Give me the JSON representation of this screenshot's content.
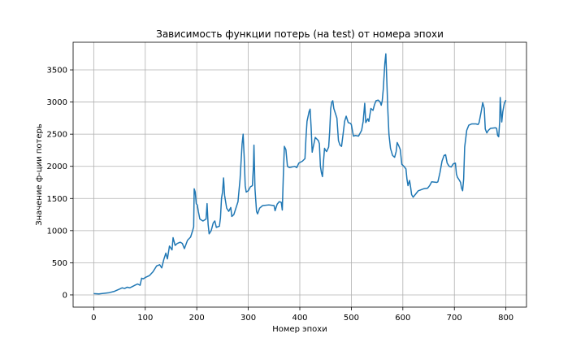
{
  "chart_data": {
    "type": "line",
    "title": "Зависимость функции потерь (на test) от номера эпохи",
    "xlabel": "Номер эпохи",
    "ylabel": "Значение ф-ции потерь",
    "xlim": [
      -40,
      840
    ],
    "ylim": [
      -190,
      3930
    ],
    "xticks": [
      0,
      100,
      200,
      300,
      400,
      500,
      600,
      700,
      800
    ],
    "yticks": [
      0,
      500,
      1000,
      1500,
      2000,
      2500,
      3000,
      3500
    ],
    "grid": true,
    "legend": "none",
    "series": [
      {
        "color": "#1f77b4",
        "points": [
          [
            0,
            20
          ],
          [
            10,
            15
          ],
          [
            20,
            25
          ],
          [
            30,
            35
          ],
          [
            40,
            55
          ],
          [
            50,
            90
          ],
          [
            55,
            110
          ],
          [
            60,
            100
          ],
          [
            65,
            120
          ],
          [
            70,
            110
          ],
          [
            75,
            130
          ],
          [
            80,
            150
          ],
          [
            85,
            170
          ],
          [
            90,
            150
          ],
          [
            93,
            260
          ],
          [
            96,
            250
          ],
          [
            100,
            270
          ],
          [
            108,
            300
          ],
          [
            115,
            360
          ],
          [
            122,
            450
          ],
          [
            128,
            470
          ],
          [
            132,
            420
          ],
          [
            136,
            550
          ],
          [
            140,
            650
          ],
          [
            143,
            560
          ],
          [
            147,
            760
          ],
          [
            152,
            700
          ],
          [
            154,
            890
          ],
          [
            158,
            770
          ],
          [
            162,
            800
          ],
          [
            168,
            820
          ],
          [
            172,
            800
          ],
          [
            176,
            720
          ],
          [
            182,
            850
          ],
          [
            188,
            900
          ],
          [
            192,
            1000
          ],
          [
            194,
            1060
          ],
          [
            195,
            1650
          ],
          [
            197,
            1600
          ],
          [
            199,
            1420
          ],
          [
            201,
            1400
          ],
          [
            203,
            1300
          ],
          [
            206,
            1180
          ],
          [
            212,
            1150
          ],
          [
            218,
            1180
          ],
          [
            220,
            1420
          ],
          [
            222,
            1100
          ],
          [
            224,
            950
          ],
          [
            228,
            1000
          ],
          [
            232,
            1120
          ],
          [
            235,
            1150
          ],
          [
            238,
            1050
          ],
          [
            244,
            1070
          ],
          [
            246,
            1200
          ],
          [
            248,
            1500
          ],
          [
            250,
            1600
          ],
          [
            252,
            1820
          ],
          [
            254,
            1550
          ],
          [
            258,
            1350
          ],
          [
            262,
            1300
          ],
          [
            266,
            1360
          ],
          [
            268,
            1220
          ],
          [
            272,
            1250
          ],
          [
            276,
            1350
          ],
          [
            280,
            1450
          ],
          [
            284,
            1800
          ],
          [
            288,
            2350
          ],
          [
            290,
            2500
          ],
          [
            292,
            2150
          ],
          [
            294,
            1700
          ],
          [
            296,
            1600
          ],
          [
            300,
            1620
          ],
          [
            304,
            1680
          ],
          [
            308,
            1700
          ],
          [
            310,
            2000
          ],
          [
            311,
            2330
          ],
          [
            313,
            1650
          ],
          [
            316,
            1300
          ],
          [
            318,
            1260
          ],
          [
            322,
            1350
          ],
          [
            328,
            1390
          ],
          [
            340,
            1400
          ],
          [
            350,
            1390
          ],
          [
            352,
            1310
          ],
          [
            356,
            1410
          ],
          [
            360,
            1450
          ],
          [
            364,
            1440
          ],
          [
            366,
            1320
          ],
          [
            368,
            1850
          ],
          [
            370,
            2310
          ],
          [
            373,
            2260
          ],
          [
            376,
            2000
          ],
          [
            380,
            1980
          ],
          [
            390,
            2000
          ],
          [
            394,
            1980
          ],
          [
            398,
            2050
          ],
          [
            405,
            2080
          ],
          [
            410,
            2120
          ],
          [
            412,
            2450
          ],
          [
            414,
            2700
          ],
          [
            418,
            2850
          ],
          [
            420,
            2890
          ],
          [
            422,
            2600
          ],
          [
            424,
            2220
          ],
          [
            426,
            2300
          ],
          [
            430,
            2450
          ],
          [
            436,
            2400
          ],
          [
            438,
            2350
          ],
          [
            440,
            2000
          ],
          [
            442,
            1900
          ],
          [
            444,
            1840
          ],
          [
            446,
            2080
          ],
          [
            448,
            2280
          ],
          [
            450,
            2250
          ],
          [
            452,
            2230
          ],
          [
            456,
            2300
          ],
          [
            458,
            2550
          ],
          [
            460,
            2900
          ],
          [
            462,
            3000
          ],
          [
            464,
            3020
          ],
          [
            466,
            2900
          ],
          [
            470,
            2800
          ],
          [
            472,
            2750
          ],
          [
            475,
            2400
          ],
          [
            478,
            2330
          ],
          [
            481,
            2310
          ],
          [
            484,
            2500
          ],
          [
            487,
            2700
          ],
          [
            490,
            2780
          ],
          [
            494,
            2680
          ],
          [
            498,
            2670
          ],
          [
            500,
            2650
          ],
          [
            504,
            2470
          ],
          [
            508,
            2480
          ],
          [
            514,
            2470
          ],
          [
            520,
            2560
          ],
          [
            523,
            2700
          ],
          [
            526,
            2980
          ],
          [
            528,
            2680
          ],
          [
            532,
            2740
          ],
          [
            534,
            2700
          ],
          [
            538,
            2900
          ],
          [
            542,
            2870
          ],
          [
            545,
            2960
          ],
          [
            548,
            3020
          ],
          [
            552,
            3030
          ],
          [
            556,
            3000
          ],
          [
            558,
            2950
          ],
          [
            560,
            3020
          ],
          [
            562,
            3200
          ],
          [
            565,
            3600
          ],
          [
            567,
            3750
          ],
          [
            569,
            3300
          ],
          [
            571,
            2850
          ],
          [
            573,
            2500
          ],
          [
            576,
            2280
          ],
          [
            580,
            2170
          ],
          [
            584,
            2140
          ],
          [
            587,
            2230
          ],
          [
            589,
            2370
          ],
          [
            592,
            2320
          ],
          [
            595,
            2260
          ],
          [
            598,
            2030
          ],
          [
            602,
            2000
          ],
          [
            606,
            1960
          ],
          [
            608,
            1800
          ],
          [
            610,
            1700
          ],
          [
            613,
            1780
          ],
          [
            615,
            1680
          ],
          [
            617,
            1560
          ],
          [
            620,
            1520
          ],
          [
            625,
            1570
          ],
          [
            630,
            1620
          ],
          [
            640,
            1650
          ],
          [
            648,
            1660
          ],
          [
            652,
            1700
          ],
          [
            656,
            1760
          ],
          [
            666,
            1750
          ],
          [
            668,
            1760
          ],
          [
            672,
            1900
          ],
          [
            676,
            2080
          ],
          [
            680,
            2170
          ],
          [
            683,
            2180
          ],
          [
            686,
            2050
          ],
          [
            690,
            2000
          ],
          [
            694,
            1990
          ],
          [
            698,
            2040
          ],
          [
            702,
            2050
          ],
          [
            704,
            1880
          ],
          [
            706,
            1830
          ],
          [
            710,
            1780
          ],
          [
            712,
            1750
          ],
          [
            714,
            1660
          ],
          [
            716,
            1620
          ],
          [
            718,
            1800
          ],
          [
            720,
            2300
          ],
          [
            724,
            2560
          ],
          [
            728,
            2640
          ],
          [
            734,
            2660
          ],
          [
            742,
            2660
          ],
          [
            746,
            2650
          ],
          [
            748,
            2680
          ],
          [
            752,
            2850
          ],
          [
            755,
            2990
          ],
          [
            758,
            2900
          ],
          [
            760,
            2580
          ],
          [
            763,
            2520
          ],
          [
            766,
            2560
          ],
          [
            770,
            2590
          ],
          [
            780,
            2600
          ],
          [
            782,
            2590
          ],
          [
            784,
            2480
          ],
          [
            786,
            2460
          ],
          [
            788,
            2700
          ],
          [
            789,
            3070
          ],
          [
            791,
            2800
          ],
          [
            792,
            2690
          ],
          [
            794,
            2850
          ],
          [
            797,
            2980
          ],
          [
            800,
            3030
          ]
        ]
      }
    ]
  }
}
